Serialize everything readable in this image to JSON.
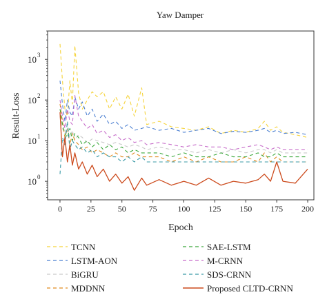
{
  "chart_data": {
    "type": "line",
    "title": "Yaw Damper",
    "xlabel": "Epoch",
    "ylabel": "Result-Loss",
    "xlim": [
      -10,
      205
    ],
    "ylim": [
      0.35,
      5000
    ],
    "yscale": "log",
    "x_ticks": [
      0,
      25,
      50,
      75,
      100,
      125,
      150,
      175,
      200
    ],
    "x_tick_labels": [
      "0",
      "25",
      "50",
      "75",
      "100",
      "125",
      "150",
      "175",
      "200"
    ],
    "y_ticks": [
      1,
      10,
      100,
      1000
    ],
    "y_tick_labels": [
      "10",
      "10",
      "10",
      "10"
    ],
    "y_tick_exponents": [
      "0",
      "1",
      "2",
      "3"
    ],
    "grid": false,
    "legend_position": "bottom",
    "x": [
      0,
      2,
      4,
      6,
      8,
      10,
      12,
      15,
      18,
      22,
      26,
      30,
      35,
      40,
      45,
      50,
      55,
      60,
      66,
      70,
      80,
      90,
      100,
      110,
      120,
      130,
      140,
      150,
      160,
      165,
      170,
      175,
      180,
      190,
      200
    ],
    "series": [
      {
        "name": "TCNN",
        "color": "#f5d33a",
        "dash": "5,4",
        "width": 1.1,
        "values": [
          2400,
          300,
          60,
          40,
          300,
          80,
          2200,
          150,
          60,
          100,
          160,
          120,
          160,
          60,
          120,
          60,
          140,
          40,
          200,
          25,
          30,
          22,
          20,
          18,
          22,
          15,
          18,
          16,
          20,
          30,
          18,
          22,
          16,
          14,
          12
        ]
      },
      {
        "name": "LSTM-AON",
        "color": "#4b7fd1",
        "dash": "5,4",
        "width": 1.1,
        "values": [
          300,
          80,
          30,
          100,
          50,
          40,
          120,
          60,
          90,
          40,
          60,
          30,
          45,
          25,
          30,
          20,
          25,
          18,
          20,
          22,
          18,
          20,
          16,
          18,
          20,
          15,
          17,
          16,
          18,
          20,
          16,
          18,
          15,
          16,
          14
        ]
      },
      {
        "name": "BiGRU",
        "color": "#c9c9c9",
        "dash": "5,4",
        "width": 1.1,
        "values": [
          40,
          20,
          15,
          25,
          12,
          18,
          10,
          14,
          12,
          9,
          11,
          10,
          9,
          8,
          9,
          8,
          7,
          8,
          7,
          6,
          7,
          6,
          6,
          5,
          6,
          5,
          6,
          5,
          6,
          6,
          5,
          6,
          5,
          5,
          5
        ]
      },
      {
        "name": "MDDNN",
        "color": "#e08b1f",
        "dash": "5,4",
        "width": 1.1,
        "values": [
          80,
          30,
          12,
          20,
          8,
          15,
          10,
          8,
          6,
          7,
          5,
          6,
          5,
          4,
          5,
          4,
          4,
          5,
          4,
          4,
          4,
          3,
          4,
          3,
          4,
          3,
          3,
          4,
          3,
          5,
          3,
          4,
          3,
          3,
          3
        ]
      },
      {
        "name": "SAE-LSTM",
        "color": "#3aa83a",
        "dash": "5,4",
        "width": 1.1,
        "values": [
          60,
          25,
          15,
          12,
          20,
          10,
          15,
          12,
          8,
          10,
          7,
          9,
          6,
          8,
          6,
          7,
          5,
          6,
          5,
          5,
          5,
          4,
          5,
          4,
          4,
          5,
          4,
          4,
          5,
          4,
          4,
          5,
          4,
          4,
          4
        ]
      },
      {
        "name": "M-CRNN",
        "color": "#c66bc9",
        "dash": "5,4",
        "width": 1.1,
        "values": [
          100,
          40,
          20,
          60,
          30,
          25,
          130,
          40,
          30,
          20,
          25,
          15,
          18,
          12,
          14,
          10,
          12,
          9,
          10,
          8,
          9,
          8,
          7,
          8,
          7,
          7,
          6,
          7,
          8,
          7,
          6,
          7,
          6,
          6,
          6
        ]
      },
      {
        "name": "SDS-CRNN",
        "color": "#3a9aa6",
        "dash": "5,4",
        "width": 1.1,
        "values": [
          1.5,
          12,
          8,
          30,
          6,
          10,
          8,
          6,
          7,
          5,
          6,
          4,
          5,
          4,
          4,
          3,
          4,
          3,
          4,
          3,
          3,
          3,
          3,
          3,
          3,
          3,
          3,
          3,
          3,
          3,
          3,
          3,
          3,
          3,
          3
        ]
      },
      {
        "name": "Proposed CLTD-CRNN",
        "color": "#cc4a1c",
        "dash": "",
        "width": 1.3,
        "values": [
          50,
          4,
          12,
          3,
          8,
          2.5,
          5,
          2,
          3,
          1.5,
          2.5,
          1.3,
          2,
          1,
          1.5,
          0.9,
          1.3,
          0.6,
          1.2,
          0.8,
          1.1,
          0.8,
          1,
          0.8,
          1.2,
          0.8,
          1,
          0.9,
          1.1,
          1.5,
          1,
          3,
          1,
          0.9,
          2
        ]
      }
    ]
  }
}
